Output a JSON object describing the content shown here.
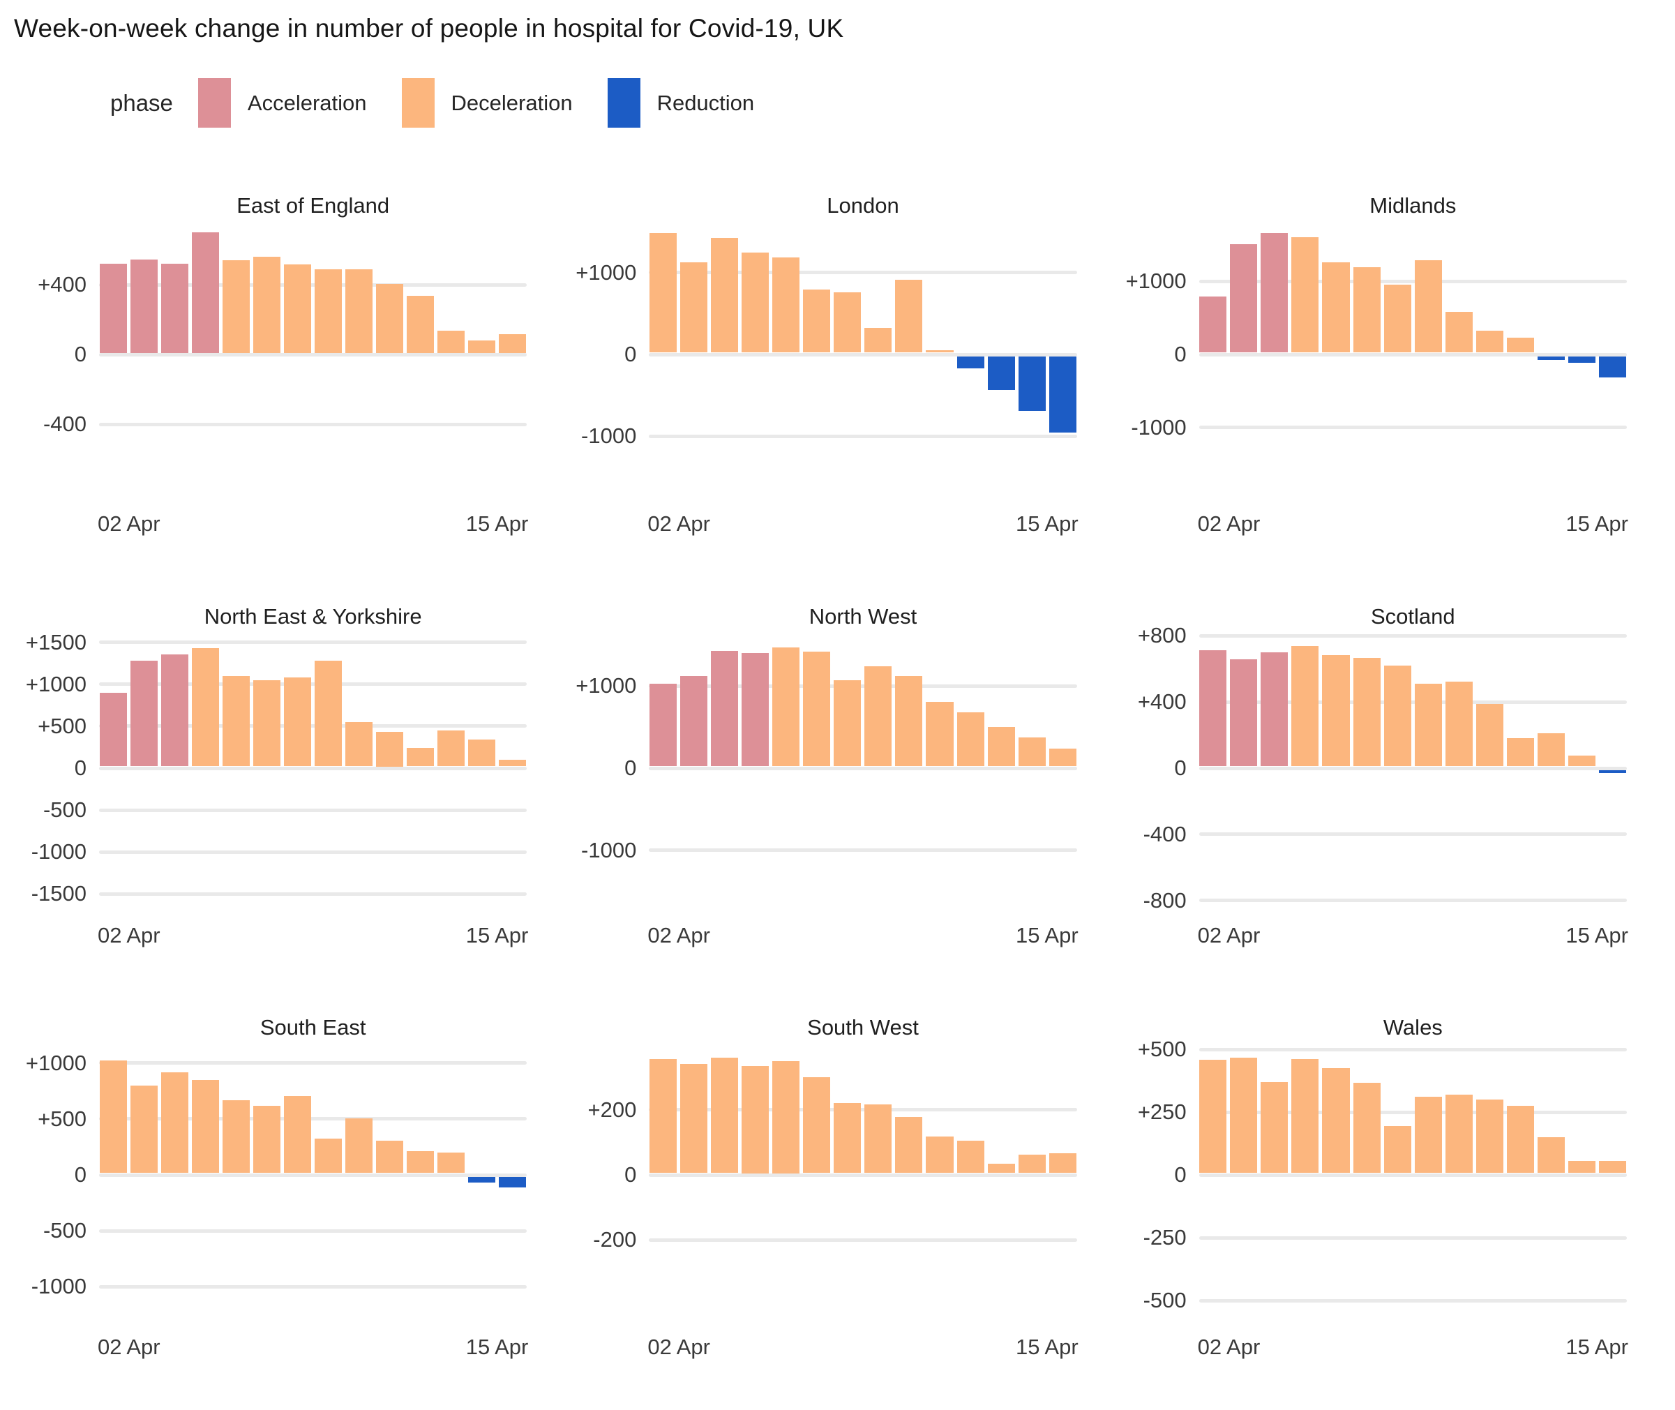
{
  "title": "Week-on-week change in number of people in hospital for Covid-19, UK",
  "legend": {
    "label": "phase",
    "items": [
      {
        "key": "acc",
        "label": "Acceleration",
        "color": "#DD9097"
      },
      {
        "key": "dec",
        "label": "Deceleration",
        "color": "#FCB67E"
      },
      {
        "key": "red",
        "label": "Reduction",
        "color": "#1C5CC5"
      }
    ]
  },
  "palette": {
    "acc": "#DD9097",
    "dec": "#FCB67E",
    "red": "#1C5CC5"
  },
  "style_colors": {
    "gridline": "#E9E9E9",
    "text": "#3A3A3A",
    "title": "#161616"
  },
  "x_axis": {
    "start_label": "02 Apr",
    "end_label": "15 Apr"
  },
  "chart_data": [
    {
      "type": "bar",
      "row": 1,
      "title": "East of England",
      "x_tick_labels": [
        "02 Apr",
        "15 Apr"
      ],
      "n_bars": 14,
      "grid": true,
      "ylim": [
        -740,
        740
      ],
      "ticks": [
        {
          "value": 400,
          "label": "+400"
        },
        {
          "value": 0,
          "label": "0"
        },
        {
          "value": -400,
          "label": "-400"
        }
      ],
      "values": [
        510,
        535,
        510,
        690,
        530,
        550,
        505,
        480,
        480,
        395,
        325,
        125,
        70,
        105
      ],
      "phases": [
        "acc",
        "acc",
        "acc",
        "acc",
        "dec",
        "dec",
        "dec",
        "dec",
        "dec",
        "dec",
        "dec",
        "dec",
        "dec",
        "dec"
      ]
    },
    {
      "type": "bar",
      "row": 1,
      "title": "London",
      "x_tick_labels": [
        "02 Apr",
        "15 Apr"
      ],
      "n_bars": 14,
      "grid": true,
      "ylim": [
        -1575,
        1575
      ],
      "ticks": [
        {
          "value": 1000,
          "label": "+1000"
        },
        {
          "value": 0,
          "label": "0"
        },
        {
          "value": -1000,
          "label": "-1000"
        }
      ],
      "values": [
        1460,
        1100,
        1400,
        1225,
        1160,
        770,
        735,
        300,
        890,
        30,
        -145,
        -415,
        -665,
        -935
      ],
      "phases": [
        "dec",
        "dec",
        "dec",
        "dec",
        "dec",
        "dec",
        "dec",
        "dec",
        "dec",
        "dec",
        "red",
        "red",
        "red",
        "red"
      ]
    },
    {
      "type": "bar",
      "row": 1,
      "title": "Midlands",
      "x_tick_labels": [
        "02 Apr",
        "15 Apr"
      ],
      "n_bars": 14,
      "grid": true,
      "ylim": [
        -1770,
        1770
      ],
      "ticks": [
        {
          "value": 1000,
          "label": "+1000"
        },
        {
          "value": 0,
          "label": "0"
        },
        {
          "value": -1000,
          "label": "-1000"
        }
      ],
      "values": [
        770,
        1490,
        1640,
        1580,
        1240,
        1170,
        935,
        1270,
        560,
        300,
        205,
        -55,
        -90,
        -295
      ],
      "phases": [
        "acc",
        "acc",
        "acc",
        "dec",
        "dec",
        "dec",
        "dec",
        "dec",
        "dec",
        "dec",
        "dec",
        "red",
        "red",
        "red"
      ]
    },
    {
      "type": "bar",
      "row": 2,
      "title": "North East & Yorkshire",
      "x_tick_labels": [
        "02 Apr",
        "15 Apr"
      ],
      "n_bars": 14,
      "grid": true,
      "ylim": [
        -1640,
        1640
      ],
      "ticks": [
        {
          "value": 1500,
          "label": "+1500"
        },
        {
          "value": 1000,
          "label": "+1000"
        },
        {
          "value": 500,
          "label": "+500"
        },
        {
          "value": 0,
          "label": "0"
        },
        {
          "value": -500,
          "label": "-500"
        },
        {
          "value": -1000,
          "label": "-1000"
        },
        {
          "value": -1500,
          "label": "-1500"
        }
      ],
      "values": [
        880,
        1260,
        1340,
        1410,
        1080,
        1030,
        1060,
        1260,
        530,
        410,
        220,
        430,
        320,
        80
      ],
      "phases": [
        "acc",
        "acc",
        "acc",
        "dec",
        "dec",
        "dec",
        "dec",
        "dec",
        "dec",
        "dec",
        "dec",
        "dec",
        "dec",
        "dec"
      ]
    },
    {
      "type": "bar",
      "row": 2,
      "title": "North West",
      "x_tick_labels": [
        "02 Apr",
        "15 Apr"
      ],
      "n_bars": 14,
      "grid": true,
      "ylim": [
        -1675,
        1675
      ],
      "ticks": [
        {
          "value": 1000,
          "label": "+1000"
        },
        {
          "value": 0,
          "label": "0"
        },
        {
          "value": -1000,
          "label": "-1000"
        }
      ],
      "values": [
        1010,
        1100,
        1410,
        1380,
        1450,
        1400,
        1050,
        1220,
        1100,
        790,
        660,
        480,
        350,
        220
      ],
      "phases": [
        "acc",
        "acc",
        "acc",
        "acc",
        "dec",
        "dec",
        "dec",
        "dec",
        "dec",
        "dec",
        "dec",
        "dec",
        "dec",
        "dec"
      ]
    },
    {
      "type": "bar",
      "row": 2,
      "title": "Scotland",
      "x_tick_labels": [
        "02 Apr",
        "15 Apr"
      ],
      "n_bars": 14,
      "grid": true,
      "ylim": [
        -830,
        830
      ],
      "ticks": [
        {
          "value": 800,
          "label": "+800"
        },
        {
          "value": 400,
          "label": "+400"
        },
        {
          "value": 0,
          "label": "0"
        },
        {
          "value": -400,
          "label": "-400"
        },
        {
          "value": -800,
          "label": "-800"
        }
      ],
      "values": [
        700,
        645,
        690,
        725,
        670,
        655,
        610,
        500,
        510,
        375,
        170,
        200,
        65,
        -20
      ],
      "phases": [
        "acc",
        "acc",
        "acc",
        "dec",
        "dec",
        "dec",
        "dec",
        "dec",
        "dec",
        "dec",
        "dec",
        "dec",
        "dec",
        "red"
      ]
    },
    {
      "type": "bar",
      "row": 3,
      "title": "South East",
      "x_tick_labels": [
        "02 Apr",
        "15 Apr"
      ],
      "n_bars": 14,
      "grid": true,
      "ylim": [
        -1180,
        1180
      ],
      "ticks": [
        {
          "value": 1000,
          "label": "+1000"
        },
        {
          "value": 500,
          "label": "+500"
        },
        {
          "value": 0,
          "label": "0"
        },
        {
          "value": -500,
          "label": "-500"
        },
        {
          "value": -1000,
          "label": "-1000"
        }
      ],
      "values": [
        1010,
        785,
        905,
        835,
        650,
        600,
        690,
        310,
        490,
        290,
        195,
        185,
        -55,
        -95
      ],
      "phases": [
        "dec",
        "dec",
        "dec",
        "dec",
        "dec",
        "dec",
        "dec",
        "dec",
        "dec",
        "dec",
        "dec",
        "dec",
        "red",
        "red"
      ]
    },
    {
      "type": "bar",
      "row": 3,
      "title": "South West",
      "x_tick_labels": [
        "02 Apr",
        "15 Apr"
      ],
      "n_bars": 14,
      "grid": true,
      "ylim": [
        -405,
        405
      ],
      "ticks": [
        {
          "value": 200,
          "label": "+200"
        },
        {
          "value": 0,
          "label": "0"
        },
        {
          "value": -200,
          "label": "-200"
        }
      ],
      "values": [
        350,
        335,
        355,
        330,
        345,
        295,
        215,
        212,
        173,
        112,
        100,
        28,
        57,
        62
      ],
      "phases": [
        "dec",
        "dec",
        "dec",
        "dec",
        "dec",
        "dec",
        "dec",
        "dec",
        "dec",
        "dec",
        "dec",
        "dec",
        "dec",
        "dec"
      ]
    },
    {
      "type": "bar",
      "row": 3,
      "title": "Wales",
      "x_tick_labels": [
        "02 Apr",
        "15 Apr"
      ],
      "n_bars": 14,
      "grid": true,
      "ylim": [
        -525,
        525
      ],
      "ticks": [
        {
          "value": 500,
          "label": "+500"
        },
        {
          "value": 250,
          "label": "+250"
        },
        {
          "value": 0,
          "label": "0"
        },
        {
          "value": -250,
          "label": "-250"
        },
        {
          "value": -500,
          "label": "-500"
        }
      ],
      "values": [
        452,
        460,
        363,
        455,
        418,
        360,
        188,
        303,
        312,
        293,
        268,
        143,
        49,
        49
      ],
      "phases": [
        "dec",
        "dec",
        "dec",
        "dec",
        "dec",
        "dec",
        "dec",
        "dec",
        "dec",
        "dec",
        "dec",
        "dec",
        "dec",
        "dec"
      ]
    }
  ]
}
